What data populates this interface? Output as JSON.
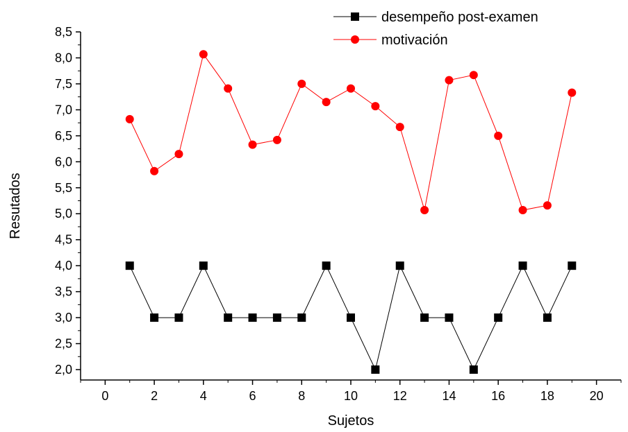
{
  "chart_data": {
    "type": "line",
    "xlabel": "Sujetos",
    "ylabel": "Resutados",
    "xlim": [
      -1,
      21
    ],
    "ylim": [
      1.8,
      8.5
    ],
    "x_ticks": [
      0,
      2,
      4,
      6,
      8,
      10,
      12,
      14,
      16,
      18,
      20
    ],
    "x_tick_labels": [
      "0",
      "2",
      "4",
      "6",
      "8",
      "10",
      "12",
      "14",
      "16",
      "18",
      "20"
    ],
    "y_ticks": [
      2.0,
      2.5,
      3.0,
      3.5,
      4.0,
      4.5,
      5.0,
      5.5,
      6.0,
      6.5,
      7.0,
      7.5,
      8.0,
      8.5
    ],
    "y_tick_labels": [
      "2,0",
      "2,5",
      "3,0",
      "3,5",
      "4,0",
      "4,5",
      "5,0",
      "5,5",
      "6,0",
      "6,5",
      "7,0",
      "7,5",
      "8,0",
      "8,5"
    ],
    "grid": false,
    "legend_position": "top-right",
    "x": [
      1,
      2,
      3,
      4,
      5,
      6,
      7,
      8,
      9,
      10,
      11,
      12,
      13,
      14,
      15,
      16,
      17,
      18,
      19
    ],
    "series": [
      {
        "name": "desempeño post-examen",
        "color": "#000000",
        "marker": "square",
        "values": [
          4,
          3,
          3,
          4,
          3,
          3,
          3,
          3,
          4,
          3,
          2,
          4,
          3,
          3,
          2,
          3,
          4,
          3,
          4
        ]
      },
      {
        "name": "motivación",
        "color": "#ff0000",
        "marker": "circle",
        "values": [
          6.82,
          5.82,
          6.15,
          8.07,
          7.41,
          6.33,
          6.42,
          7.5,
          7.15,
          7.41,
          7.07,
          6.67,
          5.07,
          7.57,
          7.67,
          6.5,
          5.07,
          5.16,
          7.33
        ]
      }
    ]
  }
}
